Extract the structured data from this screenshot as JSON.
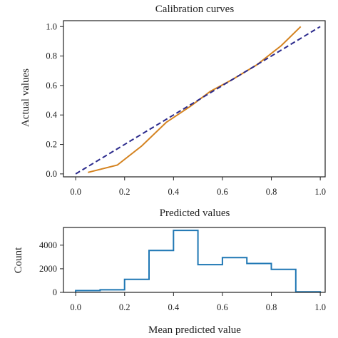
{
  "chart_data": [
    {
      "type": "line",
      "title": "Calibration curves",
      "xlabel": "Predicted values",
      "ylabel": "Actual values",
      "xlim": [
        -0.05,
        1.02
      ],
      "ylim": [
        -0.02,
        1.04
      ],
      "xticks": [
        "0.0",
        "0.2",
        "0.4",
        "0.6",
        "0.8",
        "1.0"
      ],
      "yticks": [
        "0.0",
        "0.2",
        "0.4",
        "0.6",
        "0.8",
        "1.0"
      ],
      "grid": false,
      "series": [
        {
          "style": "solid",
          "color": "#d4821f",
          "x": [
            0.05,
            0.17,
            0.27,
            0.37,
            0.47,
            0.55,
            0.64,
            0.74,
            0.84,
            0.92
          ],
          "y": [
            0.01,
            0.06,
            0.19,
            0.35,
            0.46,
            0.56,
            0.64,
            0.74,
            0.87,
            1.0
          ]
        },
        {
          "style": "dashed",
          "color": "#2b2a8c",
          "x": [
            0.0,
            1.0
          ],
          "y": [
            0.0,
            1.0
          ]
        }
      ]
    },
    {
      "type": "histogram",
      "title": "",
      "xlabel": "Mean predicted value",
      "ylabel": "Count",
      "xlim": [
        -0.05,
        1.02
      ],
      "ylim": [
        0,
        5500
      ],
      "xticks": [
        "0.0",
        "0.2",
        "0.4",
        "0.6",
        "0.8",
        "1.0"
      ],
      "yticks": [
        "0",
        "2000",
        "4000"
      ],
      "grid": false,
      "color": "#1f77b4",
      "bins": [
        0.0,
        0.1,
        0.2,
        0.3,
        0.4,
        0.5,
        0.6,
        0.7,
        0.8,
        0.9,
        1.0
      ],
      "values": [
        150,
        220,
        1100,
        3550,
        5250,
        2350,
        2950,
        2450,
        1950,
        50
      ]
    }
  ]
}
